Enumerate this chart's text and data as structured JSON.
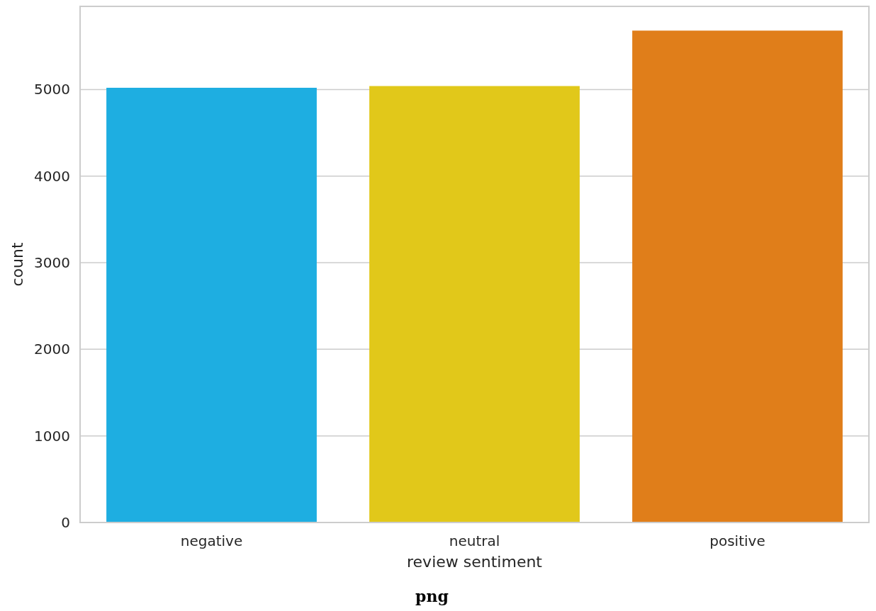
{
  "chart_data": {
    "type": "bar",
    "xlabel": "review sentiment",
    "ylabel": "count",
    "categories": [
      "negative",
      "neutral",
      "positive"
    ],
    "values": [
      5020,
      5040,
      5680
    ],
    "colors": [
      "#1eaee1",
      "#e1c81a",
      "#e07e1a"
    ],
    "ylim": [
      0,
      5960
    ],
    "yticks": [
      0,
      1000,
      2000,
      3000,
      4000,
      5000
    ],
    "grid": "y",
    "annotations": [
      "png"
    ]
  }
}
